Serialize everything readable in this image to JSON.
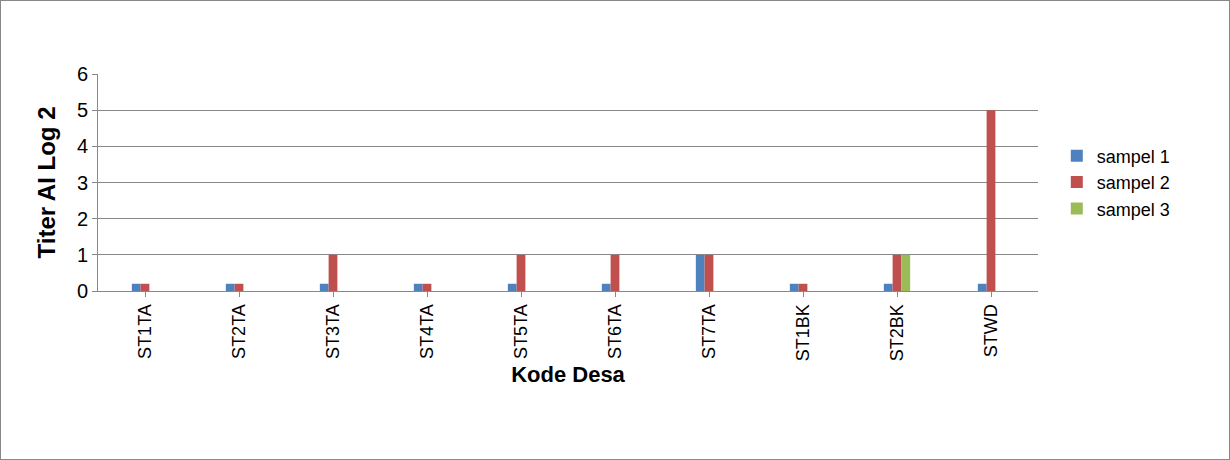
{
  "chart_data": {
    "type": "bar",
    "x_label": "Kode Desa",
    "y_label": "Titer AI Log 2",
    "categories": [
      "ST1TA",
      "ST2TA",
      "ST3TA",
      "ST4TA",
      "ST5TA",
      "ST6TA",
      "ST7TA",
      "ST1BK",
      "ST2BK",
      "STWD"
    ],
    "series": [
      {
        "name": "sampel 1",
        "color": "#4f81bd",
        "values": [
          0.2,
          0.2,
          0.2,
          0.2,
          0.2,
          0.2,
          1,
          0.2,
          0.2,
          0.2
        ]
      },
      {
        "name": "sampel 2",
        "color": "#c0504d",
        "values": [
          0.2,
          0.2,
          1,
          0.2,
          1,
          1,
          1,
          0.2,
          1,
          5
        ]
      },
      {
        "name": "sampel 3",
        "color": "#9bbb59",
        "values": [
          null,
          null,
          null,
          null,
          null,
          null,
          null,
          null,
          1,
          null
        ]
      }
    ],
    "ylim": [
      0,
      6
    ],
    "yticks": [
      0,
      1,
      2,
      3,
      4,
      5,
      6
    ],
    "grid": true,
    "legend": "right"
  }
}
